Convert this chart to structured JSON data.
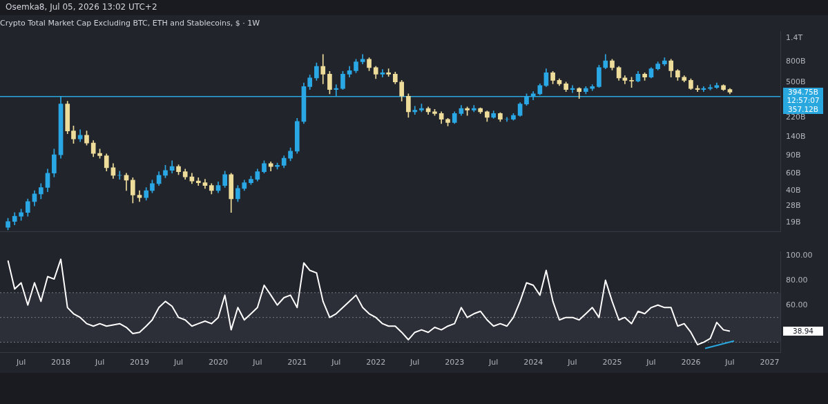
{
  "chart_data": [
    {
      "type": "candlestick",
      "title": "Crypto Total Market Cap Excluding BTC, ETH and Stablecoins, $ · 1W",
      "subtitle": "Osemka8, Jul 05, 2026 13:02 UTC+2",
      "x": [
        "2017-05",
        "2017-06",
        "2017-07",
        "2017-08",
        "2017-09",
        "2017-10",
        "2017-11",
        "2017-12",
        "2018-01",
        "2018-02",
        "2018-03",
        "2018-04",
        "2018-05",
        "2018-06",
        "2018-07",
        "2018-08",
        "2018-09",
        "2018-10",
        "2018-11",
        "2018-12",
        "2019-01",
        "2019-02",
        "2019-03",
        "2019-04",
        "2019-05",
        "2019-06",
        "2019-07",
        "2019-08",
        "2019-09",
        "2019-10",
        "2019-11",
        "2019-12",
        "2020-01",
        "2020-02",
        "2020-03",
        "2020-04",
        "2020-05",
        "2020-06",
        "2020-07",
        "2020-08",
        "2020-09",
        "2020-10",
        "2020-11",
        "2020-12",
        "2021-01",
        "2021-02",
        "2021-03",
        "2021-04",
        "2021-05",
        "2021-06",
        "2021-07",
        "2021-08",
        "2021-09",
        "2021-10",
        "2021-11",
        "2021-12",
        "2022-01",
        "2022-02",
        "2022-03",
        "2022-04",
        "2022-05",
        "2022-06",
        "2022-07",
        "2022-08",
        "2022-09",
        "2022-10",
        "2022-11",
        "2022-12",
        "2023-01",
        "2023-02",
        "2023-03",
        "2023-04",
        "2023-05",
        "2023-06",
        "2023-07",
        "2023-08",
        "2023-09",
        "2023-10",
        "2023-11",
        "2023-12",
        "2024-01",
        "2024-02",
        "2024-03",
        "2024-04",
        "2024-05",
        "2024-06",
        "2024-07",
        "2024-08",
        "2024-09",
        "2024-10",
        "2024-11",
        "2024-12",
        "2025-01",
        "2025-02",
        "2025-03",
        "2025-04",
        "2025-05",
        "2025-06",
        "2025-07",
        "2025-08",
        "2025-09",
        "2025-10",
        "2025-11",
        "2025-12",
        "2026-01",
        "2026-02",
        "2026-03",
        "2026-04",
        "2026-05",
        "2026-06",
        "2026-07"
      ],
      "ohlc": [
        [
          17000000000.0,
          21000000000.0,
          16000000000.0,
          19500000000.0
        ],
        [
          19500000000.0,
          24000000000.0,
          18000000000.0,
          22000000000.0
        ],
        [
          22000000000.0,
          26000000000.0,
          20000000000.0,
          24000000000.0
        ],
        [
          24000000000.0,
          33000000000.0,
          22000000000.0,
          31000000000.0
        ],
        [
          31000000000.0,
          40000000000.0,
          28000000000.0,
          37000000000.0
        ],
        [
          37000000000.0,
          47000000000.0,
          33000000000.0,
          43000000000.0
        ],
        [
          43000000000.0,
          66000000000.0,
          39000000000.0,
          60000000000.0
        ],
        [
          60000000000.0,
          105000000000.0,
          55000000000.0,
          92000000000.0
        ],
        [
          92000000000.0,
          357000000000.0,
          85000000000.0,
          300000000000.0
        ],
        [
          300000000000.0,
          320000000000.0,
          150000000000.0,
          160000000000.0
        ],
        [
          160000000000.0,
          180000000000.0,
          120000000000.0,
          133000000000.0
        ],
        [
          133000000000.0,
          165000000000.0,
          125000000000.0,
          145000000000.0
        ],
        [
          145000000000.0,
          160000000000.0,
          115000000000.0,
          121000000000.0
        ],
        [
          121000000000.0,
          128000000000.0,
          88000000000.0,
          95000000000.0
        ],
        [
          95000000000.0,
          105000000000.0,
          85000000000.0,
          90000000000.0
        ],
        [
          90000000000.0,
          94000000000.0,
          63000000000.0,
          68000000000.0
        ],
        [
          68000000000.0,
          75000000000.0,
          53000000000.0,
          57000000000.0
        ],
        [
          57000000000.0,
          63000000000.0,
          52000000000.0,
          57000000000.0
        ],
        [
          57000000000.0,
          60000000000.0,
          40000000000.0,
          51000000000.0
        ],
        [
          51000000000.0,
          54000000000.0,
          30000000000.0,
          36000000000.0
        ],
        [
          36000000000.0,
          40000000000.0,
          31000000000.0,
          34000000000.0
        ],
        [
          34000000000.0,
          43000000000.0,
          32000000000.0,
          40000000000.0
        ],
        [
          40000000000.0,
          51000000000.0,
          38000000000.0,
          47000000000.0
        ],
        [
          47000000000.0,
          62000000000.0,
          45000000000.0,
          57000000000.0
        ],
        [
          57000000000.0,
          72000000000.0,
          54000000000.0,
          64000000000.0
        ],
        [
          64000000000.0,
          80000000000.0,
          60000000000.0,
          70000000000.0
        ],
        [
          70000000000.0,
          73000000000.0,
          58000000000.0,
          62000000000.0
        ],
        [
          62000000000.0,
          66000000000.0,
          52000000000.0,
          55000000000.0
        ],
        [
          55000000000.0,
          60000000000.0,
          47000000000.0,
          50000000000.0
        ],
        [
          50000000000.0,
          54000000000.0,
          45000000000.0,
          48000000000.0
        ],
        [
          48000000000.0,
          52000000000.0,
          42000000000.0,
          45000000000.0
        ],
        [
          45000000000.0,
          47000000000.0,
          37000000000.0,
          40000000000.0
        ],
        [
          40000000000.0,
          49000000000.0,
          38000000000.0,
          45000000000.0
        ],
        [
          45000000000.0,
          63000000000.0,
          43000000000.0,
          58000000000.0
        ],
        [
          58000000000.0,
          60000000000.0,
          24000000000.0,
          33000000000.0
        ],
        [
          33000000000.0,
          45000000000.0,
          31000000000.0,
          42000000000.0
        ],
        [
          42000000000.0,
          51000000000.0,
          40000000000.0,
          48000000000.0
        ],
        [
          48000000000.0,
          56000000000.0,
          46000000000.0,
          52000000000.0
        ],
        [
          52000000000.0,
          66000000000.0,
          50000000000.0,
          62000000000.0
        ],
        [
          62000000000.0,
          80000000000.0,
          60000000000.0,
          75000000000.0
        ],
        [
          75000000000.0,
          78000000000.0,
          63000000000.0,
          70000000000.0
        ],
        [
          70000000000.0,
          76000000000.0,
          66000000000.0,
          72000000000.0
        ],
        [
          72000000000.0,
          90000000000.0,
          68000000000.0,
          85000000000.0
        ],
        [
          85000000000.0,
          108000000000.0,
          80000000000.0,
          100000000000.0
        ],
        [
          100000000000.0,
          215000000000.0,
          95000000000.0,
          200000000000.0
        ],
        [
          200000000000.0,
          490000000000.0,
          190000000000.0,
          450000000000.0
        ],
        [
          450000000000.0,
          590000000000.0,
          420000000000.0,
          550000000000.0
        ],
        [
          550000000000.0,
          780000000000.0,
          520000000000.0,
          720000000000.0
        ],
        [
          720000000000.0,
          950000000000.0,
          480000000000.0,
          600000000000.0
        ],
        [
          600000000000.0,
          640000000000.0,
          380000000000.0,
          420000000000.0
        ],
        [
          420000000000.0,
          470000000000.0,
          360000000000.0,
          430000000000.0
        ],
        [
          430000000000.0,
          640000000000.0,
          420000000000.0,
          600000000000.0
        ],
        [
          600000000000.0,
          720000000000.0,
          560000000000.0,
          650000000000.0
        ],
        [
          650000000000.0,
          850000000000.0,
          620000000000.0,
          800000000000.0
        ],
        [
          800000000000.0,
          950000000000.0,
          760000000000.0,
          850000000000.0
        ],
        [
          850000000000.0,
          880000000000.0,
          650000000000.0,
          700000000000.0
        ],
        [
          700000000000.0,
          720000000000.0,
          540000000000.0,
          600000000000.0
        ],
        [
          600000000000.0,
          670000000000.0,
          560000000000.0,
          620000000000.0
        ],
        [
          620000000000.0,
          680000000000.0,
          570000000000.0,
          600000000000.0
        ],
        [
          600000000000.0,
          630000000000.0,
          480000000000.0,
          500000000000.0
        ],
        [
          500000000000.0,
          520000000000.0,
          320000000000.0,
          360000000000.0
        ],
        [
          360000000000.0,
          380000000000.0,
          220000000000.0,
          250000000000.0
        ],
        [
          250000000000.0,
          285000000000.0,
          235000000000.0,
          260000000000.0
        ],
        [
          260000000000.0,
          300000000000.0,
          250000000000.0,
          270000000000.0
        ],
        [
          270000000000.0,
          280000000000.0,
          235000000000.0,
          250000000000.0
        ],
        [
          250000000000.0,
          265000000000.0,
          230000000000.0,
          240000000000.0
        ],
        [
          240000000000.0,
          250000000000.0,
          190000000000.0,
          210000000000.0
        ],
        [
          210000000000.0,
          215000000000.0,
          180000000000.0,
          195000000000.0
        ],
        [
          195000000000.0,
          250000000000.0,
          190000000000.0,
          240000000000.0
        ],
        [
          240000000000.0,
          290000000000.0,
          230000000000.0,
          270000000000.0
        ],
        [
          270000000000.0,
          280000000000.0,
          230000000000.0,
          260000000000.0
        ],
        [
          260000000000.0,
          290000000000.0,
          250000000000.0,
          270000000000.0
        ],
        [
          270000000000.0,
          275000000000.0,
          240000000000.0,
          250000000000.0
        ],
        [
          250000000000.0,
          255000000000.0,
          200000000000.0,
          220000000000.0
        ],
        [
          220000000000.0,
          255000000000.0,
          215000000000.0,
          240000000000.0
        ],
        [
          240000000000.0,
          245000000000.0,
          200000000000.0,
          210000000000.0
        ],
        [
          210000000000.0,
          220000000000.0,
          200000000000.0,
          210000000000.0
        ],
        [
          210000000000.0,
          240000000000.0,
          205000000000.0,
          230000000000.0
        ],
        [
          230000000000.0,
          310000000000.0,
          225000000000.0,
          300000000000.0
        ],
        [
          300000000000.0,
          380000000000.0,
          290000000000.0,
          360000000000.0
        ],
        [
          360000000000.0,
          400000000000.0,
          330000000000.0,
          380000000000.0
        ],
        [
          380000000000.0,
          480000000000.0,
          370000000000.0,
          460000000000.0
        ],
        [
          460000000000.0,
          680000000000.0,
          450000000000.0,
          620000000000.0
        ],
        [
          620000000000.0,
          640000000000.0,
          480000000000.0,
          520000000000.0
        ],
        [
          520000000000.0,
          540000000000.0,
          460000000000.0,
          480000000000.0
        ],
        [
          480000000000.0,
          500000000000.0,
          400000000000.0,
          420000000000.0
        ],
        [
          420000000000.0,
          460000000000.0,
          390000000000.0,
          430000000000.0
        ],
        [
          430000000000.0,
          440000000000.0,
          340000000000.0,
          400000000000.0
        ],
        [
          400000000000.0,
          450000000000.0,
          380000000000.0,
          430000000000.0
        ],
        [
          430000000000.0,
          470000000000.0,
          410000000000.0,
          450000000000.0
        ],
        [
          450000000000.0,
          740000000000.0,
          440000000000.0,
          700000000000.0
        ],
        [
          700000000000.0,
          950000000000.0,
          680000000000.0,
          820000000000.0
        ],
        [
          820000000000.0,
          850000000000.0,
          660000000000.0,
          700000000000.0
        ],
        [
          700000000000.0,
          720000000000.0,
          520000000000.0,
          550000000000.0
        ],
        [
          550000000000.0,
          580000000000.0,
          480000000000.0,
          520000000000.0
        ],
        [
          520000000000.0,
          560000000000.0,
          440000000000.0,
          510000000000.0
        ],
        [
          510000000000.0,
          640000000000.0,
          500000000000.0,
          600000000000.0
        ],
        [
          600000000000.0,
          620000000000.0,
          520000000000.0,
          560000000000.0
        ],
        [
          560000000000.0,
          700000000000.0,
          550000000000.0,
          680000000000.0
        ],
        [
          680000000000.0,
          800000000000.0,
          660000000000.0,
          760000000000.0
        ],
        [
          760000000000.0,
          880000000000.0,
          730000000000.0,
          820000000000.0
        ],
        [
          820000000000.0,
          850000000000.0,
          560000000000.0,
          650000000000.0
        ],
        [
          650000000000.0,
          670000000000.0,
          520000000000.0,
          560000000000.0
        ],
        [
          560000000000.0,
          580000000000.0,
          500000000000.0,
          520000000000.0
        ],
        [
          520000000000.0,
          540000000000.0,
          420000000000.0,
          430000000000.0
        ],
        [
          430000000000.0,
          460000000000.0,
          400000000000.0,
          420000000000.0
        ],
        [
          420000000000.0,
          450000000000.0,
          400000000000.0,
          430000000000.0
        ],
        [
          430000000000.0,
          470000000000.0,
          415000000000.0,
          440000000000.0
        ],
        [
          440000000000.0,
          490000000000.0,
          430000000000.0,
          460000000000.0
        ],
        [
          460000000000.0,
          470000000000.0,
          410000000000.0,
          420000000000.0
        ],
        [
          420000000000.0,
          430000000000.0,
          380000000000.0,
          394750000000.0
        ]
      ],
      "colors": [
        "#2aa8e6",
        "#2aa8e6",
        "#2aa8e6",
        "#2aa8e6",
        "#2aa8e6",
        "#2aa8e6",
        "#2aa8e6",
        "#2aa8e6",
        "#2aa8e6",
        "#eedd9a",
        "#eedd9a",
        "#2aa8e6",
        "#eedd9a",
        "#eedd9a",
        "#eedd9a",
        "#eedd9a",
        "#eedd9a",
        "#2aa8e6",
        "#eedd9a",
        "#eedd9a",
        "#eedd9a",
        "#2aa8e6",
        "#2aa8e6",
        "#2aa8e6",
        "#2aa8e6",
        "#2aa8e6",
        "#eedd9a",
        "#eedd9a",
        "#eedd9a",
        "#eedd9a",
        "#eedd9a",
        "#eedd9a",
        "#2aa8e6",
        "#2aa8e6",
        "#eedd9a",
        "#2aa8e6",
        "#2aa8e6",
        "#2aa8e6",
        "#2aa8e6",
        "#2aa8e6",
        "#eedd9a",
        "#2aa8e6",
        "#2aa8e6",
        "#2aa8e6",
        "#2aa8e6",
        "#2aa8e6",
        "#2aa8e6",
        "#2aa8e6",
        "#eedd9a",
        "#eedd9a",
        "#2aa8e6",
        "#2aa8e6",
        "#2aa8e6",
        "#2aa8e6",
        "#2aa8e6",
        "#eedd9a",
        "#eedd9a",
        "#2aa8e6",
        "#eedd9a",
        "#eedd9a",
        "#eedd9a",
        "#eedd9a",
        "#2aa8e6",
        "#2aa8e6",
        "#eedd9a",
        "#eedd9a",
        "#eedd9a",
        "#eedd9a",
        "#2aa8e6",
        "#2aa8e6",
        "#eedd9a",
        "#2aa8e6",
        "#eedd9a",
        "#eedd9a",
        "#2aa8e6",
        "#eedd9a",
        "#2aa8e6",
        "#2aa8e6",
        "#2aa8e6",
        "#2aa8e6",
        "#2aa8e6",
        "#2aa8e6",
        "#2aa8e6",
        "#eedd9a",
        "#eedd9a",
        "#eedd9a",
        "#2aa8e6",
        "#eedd9a",
        "#2aa8e6",
        "#2aa8e6",
        "#2aa8e6",
        "#2aa8e6",
        "#eedd9a",
        "#eedd9a",
        "#eedd9a",
        "#eedd9a",
        "#2aa8e6",
        "#eedd9a",
        "#2aa8e6",
        "#2aa8e6",
        "#2aa8e6",
        "#eedd9a",
        "#eedd9a",
        "#eedd9a",
        "#eedd9a",
        "#eedd9a",
        "#2aa8e6",
        "#2aa8e6",
        "#2aa8e6",
        "#eedd9a",
        "#eedd9a"
      ],
      "xlim": [
        "2017-03-25",
        "2027-02-20"
      ],
      "ylim": [
        15400000000.0,
        1630000000000.0
      ],
      "log": true,
      "yticks": [
        {
          "value": 19000000000.0,
          "label": "19B"
        },
        {
          "value": 28000000000.0,
          "label": "28B"
        },
        {
          "value": 40000000000.0,
          "label": "40B"
        },
        {
          "value": 60000000000.0,
          "label": "60B"
        },
        {
          "value": 90000000000.0,
          "label": "90B"
        },
        {
          "value": 140000000000.0,
          "label": "140B"
        },
        {
          "value": 220000000000.0,
          "label": "220B"
        },
        {
          "value": 500000000000.0,
          "label": "500B"
        },
        {
          "value": 800000000000.0,
          "label": "800B"
        },
        {
          "value": 1400000000000.0,
          "label": "1.4T"
        }
      ],
      "tick_labels": "y",
      "ref_lines": [
        {
          "axis": "y",
          "value": 357120000000.0,
          "label": "357.12B",
          "color": "#29a8e0"
        }
      ],
      "annotations": [
        "394.75B",
        "12:57:07"
      ],
      "legend": false,
      "grid": false
    },
    {
      "type": "line",
      "series": [
        {
          "color": "#ffffff",
          "x": [
            "2017-05",
            "2017-06",
            "2017-07",
            "2017-08",
            "2017-09",
            "2017-10",
            "2017-11",
            "2017-12",
            "2018-01",
            "2018-02",
            "2018-03",
            "2018-04",
            "2018-05",
            "2018-06",
            "2018-07",
            "2018-08",
            "2018-09",
            "2018-10",
            "2018-11",
            "2018-12",
            "2019-01",
            "2019-02",
            "2019-03",
            "2019-04",
            "2019-05",
            "2019-06",
            "2019-07",
            "2019-08",
            "2019-09",
            "2019-10",
            "2019-11",
            "2019-12",
            "2020-01",
            "2020-02",
            "2020-03",
            "2020-04",
            "2020-05",
            "2020-06",
            "2020-07",
            "2020-08",
            "2020-09",
            "2020-10",
            "2020-11",
            "2020-12",
            "2021-01",
            "2021-02",
            "2021-03",
            "2021-04",
            "2021-05",
            "2021-06",
            "2021-07",
            "2021-08",
            "2021-09",
            "2021-10",
            "2021-11",
            "2021-12",
            "2022-01",
            "2022-02",
            "2022-03",
            "2022-04",
            "2022-05",
            "2022-06",
            "2022-07",
            "2022-08",
            "2022-09",
            "2022-10",
            "2022-11",
            "2022-12",
            "2023-01",
            "2023-02",
            "2023-03",
            "2023-04",
            "2023-05",
            "2023-06",
            "2023-07",
            "2023-08",
            "2023-09",
            "2023-10",
            "2023-11",
            "2023-12",
            "2024-01",
            "2024-02",
            "2024-03",
            "2024-04",
            "2024-05",
            "2024-06",
            "2024-07",
            "2024-08",
            "2024-09",
            "2024-10",
            "2024-11",
            "2024-12",
            "2025-01",
            "2025-02",
            "2025-03",
            "2025-04",
            "2025-05",
            "2025-06",
            "2025-07",
            "2025-08",
            "2025-09",
            "2025-10",
            "2025-11",
            "2025-12",
            "2026-01",
            "2026-02",
            "2026-03",
            "2026-04",
            "2026-05",
            "2026-06",
            "2026-07"
          ],
          "values": [
            96,
            73,
            78,
            60,
            78,
            63,
            83,
            81,
            97,
            58,
            53,
            50,
            45,
            43,
            45,
            43,
            44,
            45,
            42,
            37,
            38,
            43,
            48,
            58,
            63,
            59,
            50,
            48,
            43,
            45,
            47,
            45,
            50,
            68,
            40,
            58,
            48,
            53,
            58,
            76,
            68,
            60,
            66,
            68,
            58,
            94,
            88,
            86,
            63,
            50,
            53,
            58,
            63,
            68,
            58,
            53,
            50,
            45,
            43,
            43,
            38,
            32,
            38,
            40,
            38,
            42,
            40,
            43,
            45,
            58,
            50,
            53,
            55,
            48,
            43,
            45,
            43,
            50,
            63,
            78,
            76,
            68,
            88,
            63,
            48,
            50,
            50,
            48,
            53,
            58,
            50,
            80,
            63,
            48,
            50,
            45,
            55,
            53,
            58,
            60,
            58,
            58,
            43,
            45,
            38,
            28,
            30,
            33,
            46,
            40,
            38.94
          ]
        },
        {
          "color": "#29a8e0",
          "x": [
            "2026-03-08",
            "2026-07-20"
          ],
          "values": [
            25,
            31
          ]
        }
      ],
      "xlim": [
        "2017-03-25",
        "2027-02-20"
      ],
      "xticks": [
        {
          "value": "2017-07-01",
          "label": "Jul"
        },
        {
          "value": "2018-01-01",
          "label": "2018"
        },
        {
          "value": "2018-07-01",
          "label": "Jul"
        },
        {
          "value": "2019-01-01",
          "label": "2019"
        },
        {
          "value": "2019-07-01",
          "label": "Jul"
        },
        {
          "value": "2020-01-01",
          "label": "2020"
        },
        {
          "value": "2020-07-01",
          "label": "Jul"
        },
        {
          "value": "2021-01-01",
          "label": "2021"
        },
        {
          "value": "2021-07-01",
          "label": "Jul"
        },
        {
          "value": "2022-01-01",
          "label": "2022"
        },
        {
          "value": "2022-07-01",
          "label": "Jul"
        },
        {
          "value": "2023-01-01",
          "label": "2023"
        },
        {
          "value": "2023-07-01",
          "label": "Jul"
        },
        {
          "value": "2024-01-01",
          "label": "2024"
        },
        {
          "value": "2024-07-01",
          "label": "Jul"
        },
        {
          "value": "2025-01-01",
          "label": "2025"
        },
        {
          "value": "2025-07-01",
          "label": "Jul"
        },
        {
          "value": "2026-01-01",
          "label": "2026"
        },
        {
          "value": "2026-07-01",
          "label": "Jul"
        },
        {
          "value": "2027-01-01",
          "label": "2027"
        }
      ],
      "ylim": [
        21.5,
        103
      ],
      "yticks": [
        {
          "value": 60,
          "label": "60.00"
        },
        {
          "value": 80,
          "label": "80.00"
        },
        {
          "value": 100,
          "label": "100.00"
        }
      ],
      "bands": [
        {
          "axis": "y",
          "from": 30,
          "to": 70,
          "color": "#2c2f38"
        }
      ],
      "ref_lines": [
        {
          "axis": "y",
          "value": 70,
          "color": "#787b86",
          "line_style": "dotted"
        },
        {
          "axis": "y",
          "value": 50,
          "color": "#787b86",
          "line_style": "dotted"
        },
        {
          "axis": "y",
          "value": 30,
          "color": "#787b86",
          "line_style": "dotted"
        }
      ],
      "annotations": [
        "38.94"
      ],
      "marker": "none",
      "line_style": "solid",
      "legend": false,
      "grid": false
    }
  ]
}
